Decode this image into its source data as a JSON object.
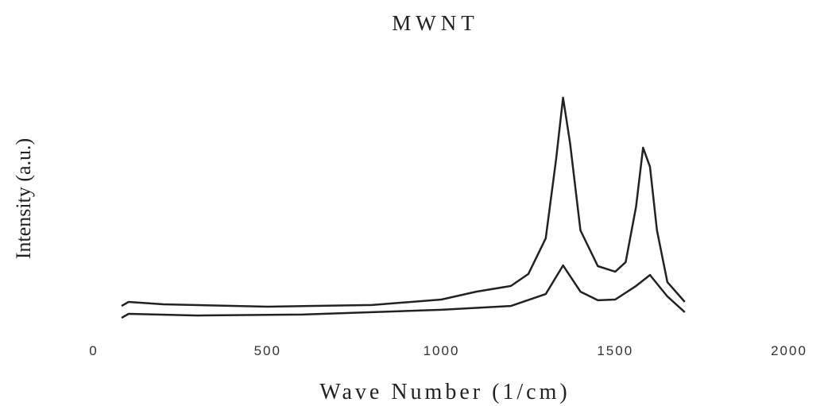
{
  "chart_data": {
    "type": "line",
    "title": "MWNT",
    "xlabel": "Wave Number (1/cm)",
    "ylabel": "Intensity (a.u.)",
    "xlim": [
      0,
      2000
    ],
    "xticks": [
      0,
      500,
      1000,
      1500,
      2000
    ],
    "ylim": [
      0,
      100
    ],
    "series": [
      {
        "color": "#222222",
        "x": [
          80,
          100,
          200,
          500,
          800,
          1000,
          1100,
          1200,
          1250,
          1300,
          1330,
          1350,
          1370,
          1400,
          1450,
          1500,
          1530,
          1560,
          1580,
          1600,
          1620,
          1650,
          1700
        ],
        "values": [
          8.3,
          10,
          9,
          8,
          8.7,
          11,
          14.3,
          16.7,
          21.7,
          36.7,
          70,
          95.7,
          76.7,
          40,
          25,
          22.7,
          26.7,
          50,
          74.7,
          66.7,
          40,
          18.3,
          10
        ]
      },
      {
        "color": "#222222",
        "x": [
          80,
          100,
          300,
          600,
          1000,
          1200,
          1300,
          1350,
          1400,
          1450,
          1500,
          1560,
          1600,
          1650,
          1700
        ],
        "values": [
          3.3,
          5,
          4.3,
          4.7,
          6.7,
          8.3,
          13.3,
          25.3,
          14.3,
          10.7,
          11,
          16.7,
          21.3,
          12.3,
          5.7
        ]
      }
    ]
  }
}
